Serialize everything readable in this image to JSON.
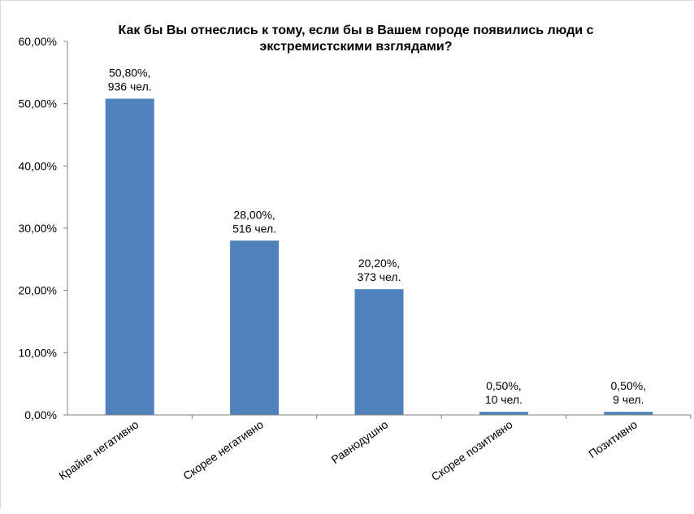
{
  "chart_data": {
    "type": "bar",
    "title_lines": [
      "Как бы Вы отнеслись к тому, если бы в Вашем городе появились люди с",
      "экстремистскими взглядами?"
    ],
    "xlabel": "",
    "ylabel": "",
    "ylim": [
      0,
      60
    ],
    "yticks": [
      0,
      10,
      20,
      30,
      40,
      50,
      60
    ],
    "ytick_labels": [
      "0,00%",
      "10,00%",
      "20,00%",
      "30,00%",
      "40,00%",
      "50,00%",
      "60,00%"
    ],
    "grid": false,
    "legend": "none",
    "bar_color": "#4f81bd",
    "categories": [
      "Крайне негативно",
      "Скорее негативно",
      "Равнодушно",
      "Скорее позитивно",
      "Позитивно"
    ],
    "values": [
      50.8,
      28.0,
      20.2,
      0.5,
      0.5
    ],
    "data_labels": [
      [
        "50,80%,",
        "936 чел."
      ],
      [
        "28,00%,",
        "516 чел."
      ],
      [
        "20,20%,",
        "373 чел."
      ],
      [
        "0,50%,",
        "10 чел."
      ],
      [
        "0,50%,",
        "9 чел."
      ]
    ]
  }
}
